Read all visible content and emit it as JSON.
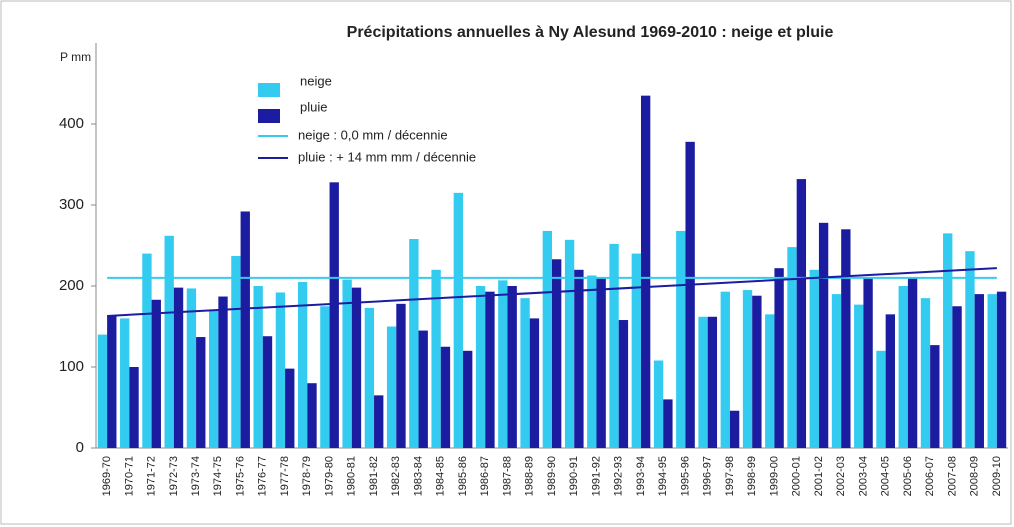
{
  "chart_data": {
    "type": "bar",
    "title": "Précipitations annuelles à Ny Alesund 1969-2010 : neige et pluie",
    "y_label": "P mm",
    "categories": [
      "1969-70",
      "1970-71",
      "1971-72",
      "1972-73",
      "1973-74",
      "1974-75",
      "1975-76",
      "1976-77",
      "1977-78",
      "1978-79",
      "1979-80",
      "1980-81",
      "1981-82",
      "1982-83",
      "1983-84",
      "1984-85",
      "1985-86",
      "1986-87",
      "1987-88",
      "1988-89",
      "1989-90",
      "1990-91",
      "1991-92",
      "1992-93",
      "1993-94",
      "1994-95",
      "1995-96",
      "1996-97",
      "1997-98",
      "1998-99",
      "1999-00",
      "2000-01",
      "2001-02",
      "2002-03",
      "2003-04",
      "2004-05",
      "2005-06",
      "2006-07",
      "2007-08",
      "2008-09",
      "2009-10"
    ],
    "series": [
      {
        "name": "neige",
        "color": "#33ccf0",
        "values": [
          140,
          160,
          240,
          262,
          197,
          170,
          237,
          200,
          192,
          205,
          175,
          208,
          173,
          150,
          258,
          220,
          315,
          200,
          207,
          185,
          268,
          257,
          213,
          252,
          240,
          108,
          268,
          162,
          193,
          195,
          165,
          248,
          220,
          190,
          177,
          120,
          200,
          185,
          265,
          243,
          190
        ]
      },
      {
        "name": "pluie",
        "color": "#1c1ca0",
        "values": [
          163,
          100,
          183,
          198,
          137,
          187,
          292,
          138,
          98,
          80,
          328,
          198,
          65,
          178,
          145,
          125,
          120,
          193,
          200,
          160,
          233,
          220,
          210,
          158,
          435,
          60,
          378,
          162,
          46,
          188,
          222,
          332,
          278,
          270,
          210,
          165,
          210,
          127,
          175,
          190,
          193
        ]
      }
    ],
    "trends": [
      {
        "name": "neige : 0,0 mm / décennie",
        "color": "#33ccf0",
        "values": [
          210,
          210
        ]
      },
      {
        "name": "pluie : + 14 mm mm / décennie",
        "color": "#1c1ca0",
        "values": [
          163,
          222
        ]
      }
    ],
    "ylim": [
      0,
      500
    ],
    "yticks": [
      0,
      100,
      200,
      300,
      400
    ]
  }
}
